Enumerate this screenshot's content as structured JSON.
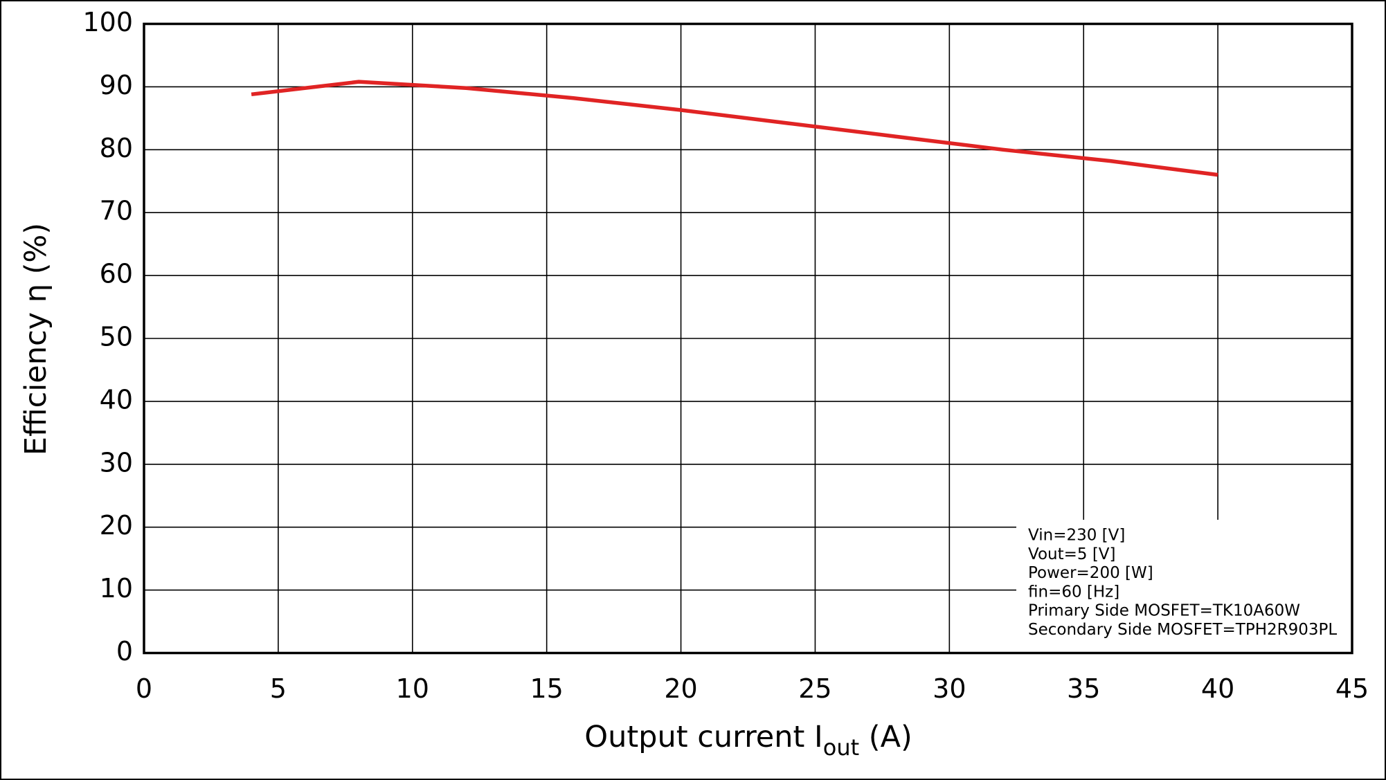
{
  "chart_data": {
    "type": "line",
    "ylabel": "Efficiency  η (%)",
    "xlabel": {
      "text": "Output current  I",
      "sub": "out",
      "tail": " (A)"
    },
    "xlim": [
      0,
      45
    ],
    "xticks": [
      0,
      5,
      10,
      15,
      20,
      25,
      30,
      35,
      40,
      45
    ],
    "ylim": [
      0,
      100
    ],
    "yticks": [
      0,
      10,
      20,
      30,
      40,
      50,
      60,
      70,
      80,
      90,
      100
    ],
    "grid": true,
    "series": [
      {
        "name": "Efficiency",
        "color": "#e02424",
        "x": [
          4,
          8,
          12,
          16,
          20,
          24,
          28,
          32,
          36,
          40
        ],
        "values": [
          88.8,
          90.8,
          89.8,
          88.2,
          86.3,
          84.2,
          82.1,
          80.0,
          78.2,
          76.0
        ]
      }
    ],
    "annotation": [
      "Vin=230 [V]",
      "Vout=5 [V]",
      "Power=200 [W]",
      "fin=60 [Hz]",
      "Primary Side MOSFET=TK10A60W",
      "Secondary Side MOSFET=TPH2R903PL"
    ]
  }
}
